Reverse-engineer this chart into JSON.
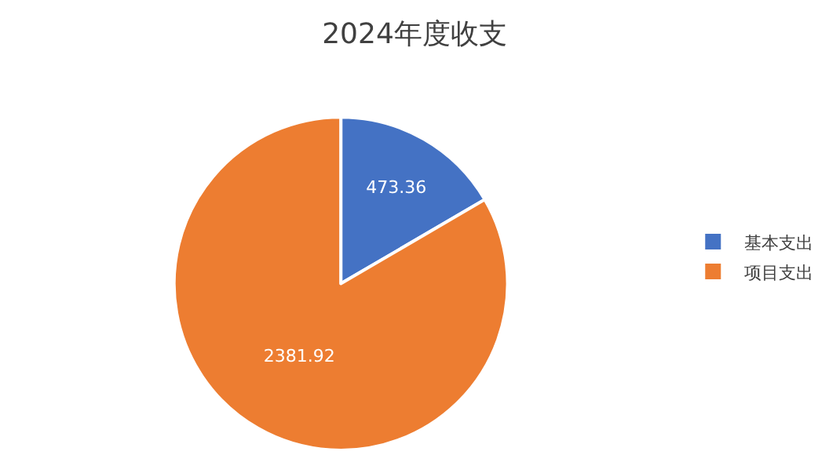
{
  "chart_data": {
    "type": "pie",
    "title": "2024年度收支",
    "categories": [
      "基本支出",
      "项目支出"
    ],
    "values": [
      473.36,
      2381.92
    ],
    "colors": [
      "#4472c4",
      "#ed7d31"
    ],
    "data_labels": true,
    "legend": "right"
  }
}
